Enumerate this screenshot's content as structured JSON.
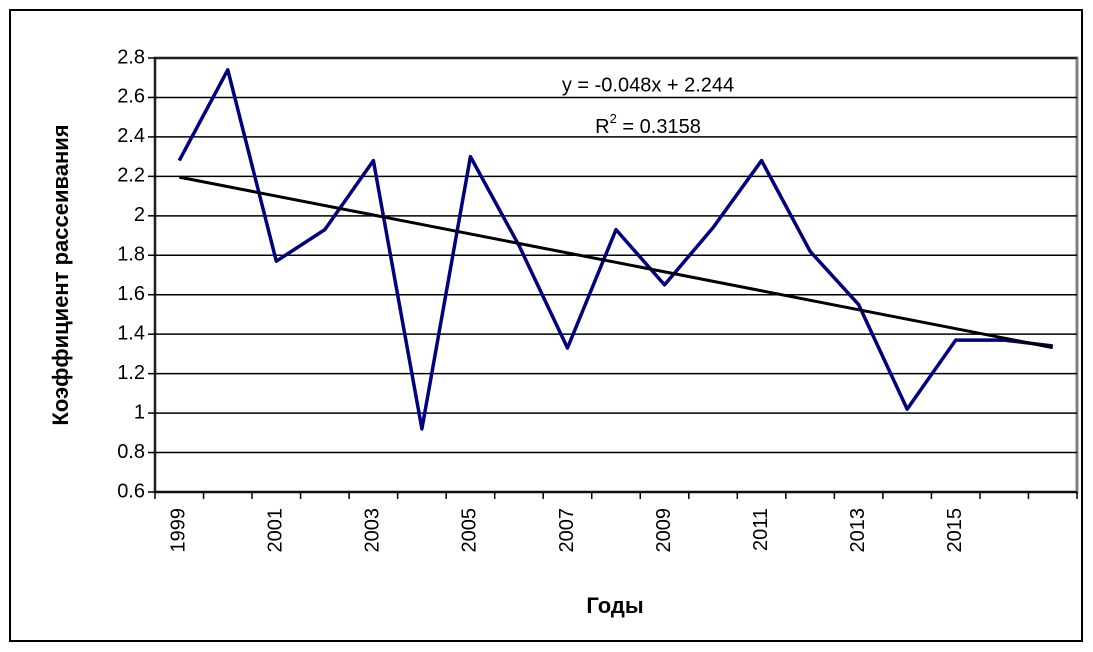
{
  "chart_data": {
    "type": "line",
    "categories": [
      "1999",
      null,
      "2001",
      null,
      "2003",
      null,
      "2005",
      null,
      "2007",
      null,
      "2009",
      null,
      "2011",
      null,
      "2013",
      null,
      "2015",
      null,
      null
    ],
    "series": [
      {
        "color": "#000080",
        "values": [
          2.28,
          2.74,
          1.77,
          1.93,
          2.28,
          0.92,
          2.3,
          1.85,
          1.33,
          1.93,
          1.65,
          1.94,
          2.28,
          1.82,
          1.55,
          1.02,
          1.37,
          1.37,
          1.34
        ]
      }
    ],
    "trendline": {
      "color": "#000000",
      "values": [
        2.196,
        1.332
      ]
    },
    "annotations": [
      "y = -0.048x + 2.244"
    ],
    "r2_label": [
      "R",
      "2",
      " = 0.3158"
    ],
    "xlabel": "Годы",
    "ylabel": "Коэффициент рассеивания",
    "ylim": [
      0.6,
      2.8
    ],
    "yticks": [
      0.6,
      0.8,
      1,
      1.2,
      1.4,
      1.6,
      1.8,
      2,
      2.2,
      2.4,
      2.6,
      2.8
    ],
    "grid": true
  }
}
